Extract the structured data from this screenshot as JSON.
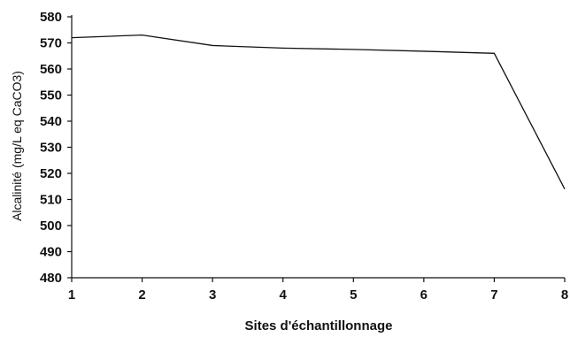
{
  "chart_data": {
    "type": "line",
    "title": "",
    "xlabel": "Sites d'échantillonnage",
    "ylabel": "Alcalinité (mg/L eq CaCO3)",
    "x": [
      1,
      2,
      3,
      4,
      5,
      6,
      7,
      8
    ],
    "x_tick_labels": [
      "1",
      "2",
      "3",
      "4",
      "5",
      "6",
      "7",
      "8"
    ],
    "y_tick_labels": [
      "480",
      "490",
      "500",
      "510",
      "520",
      "530",
      "540",
      "550",
      "560",
      "570",
      "580"
    ],
    "ylim": [
      480,
      580
    ],
    "xlim": [
      1,
      8
    ],
    "grid": false,
    "series": [
      {
        "values": [
          572,
          573,
          569,
          568,
          567.5,
          566.8,
          566,
          514
        ]
      }
    ]
  }
}
